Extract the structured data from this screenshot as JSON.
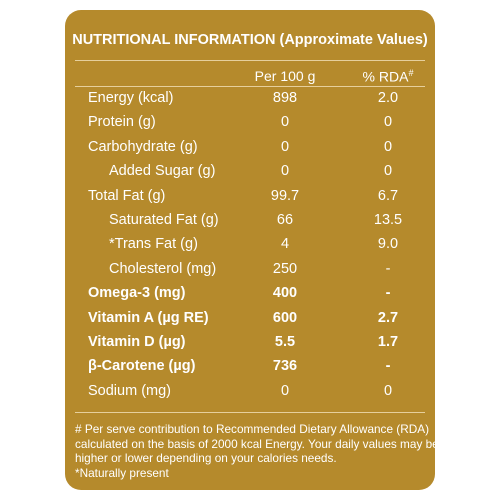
{
  "title": "NUTRITIONAL INFORMATION (Approximate Values)",
  "columns": {
    "per100": "Per 100 g",
    "rda": "% RDA",
    "rda_mark": "#"
  },
  "rows": [
    {
      "nutrient": "Energy (kcal)",
      "per100": "898",
      "rda": "2.0",
      "indent": false,
      "bold": false
    },
    {
      "nutrient": "Protein (g)",
      "per100": "0",
      "rda": "0",
      "indent": false,
      "bold": false
    },
    {
      "nutrient": "Carbohydrate (g)",
      "per100": "0",
      "rda": "0",
      "indent": false,
      "bold": false
    },
    {
      "nutrient": "Added Sugar (g)",
      "per100": "0",
      "rda": "0",
      "indent": true,
      "bold": false
    },
    {
      "nutrient": "Total Fat (g)",
      "per100": "99.7",
      "rda": "6.7",
      "indent": false,
      "bold": false
    },
    {
      "nutrient": "Saturated Fat (g)",
      "per100": "66",
      "rda": "13.5",
      "indent": true,
      "bold": false
    },
    {
      "nutrient": "*Trans Fat (g)",
      "per100": "4",
      "rda": "9.0",
      "indent": true,
      "bold": false
    },
    {
      "nutrient": "Cholesterol (mg)",
      "per100": "250",
      "rda": "-",
      "indent": true,
      "bold": false
    },
    {
      "nutrient": "Omega-3 (mg)",
      "per100": "400",
      "rda": "-",
      "indent": false,
      "bold": true
    },
    {
      "nutrient": "Vitamin A (µg RE)",
      "per100": "600",
      "rda": "2.7",
      "indent": false,
      "bold": true
    },
    {
      "nutrient": "Vitamin D (µg)",
      "per100": "5.5",
      "rda": "1.7",
      "indent": false,
      "bold": true
    },
    {
      "nutrient": "β-Carotene (µg)",
      "per100": "736",
      "rda": "-",
      "indent": false,
      "bold": true
    },
    {
      "nutrient": "Sodium (mg)",
      "per100": "0",
      "rda": "0",
      "indent": false,
      "bold": false
    }
  ],
  "footnote": {
    "lines": [
      "# Per serve contribution to Recommended Dietary Allowance (RDA)",
      "calculated on the basis of 2000 kcal Energy. Your daily values may be",
      "higher or lower depending on your calories needs.",
      "*Naturally present"
    ]
  },
  "colors": {
    "panel": "#b58a2c",
    "text": "#ffffff",
    "rule": "#e6cf9c"
  }
}
